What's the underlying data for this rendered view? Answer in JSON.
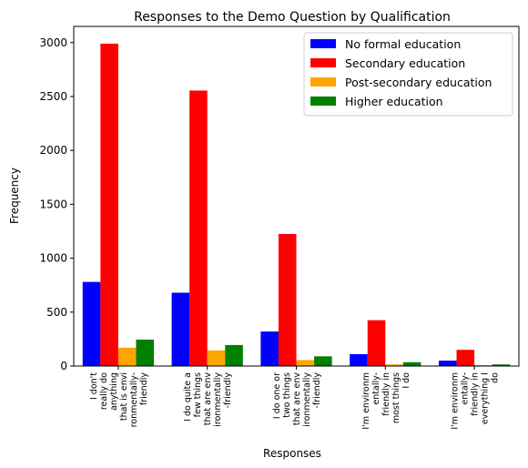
{
  "chart_data": {
    "type": "bar",
    "title": "Responses to the Demo Question by Qualification",
    "xlabel": "Responses",
    "ylabel": "Frequency",
    "ylim": [
      0,
      3150
    ],
    "yticks": [
      0,
      500,
      1000,
      1500,
      2000,
      2500,
      3000
    ],
    "grid": false,
    "legend_position": "top-right",
    "categories": [
      [
        "I don't",
        "really do",
        "anything",
        "that is envi",
        "ronmentally-",
        "friendly"
      ],
      [
        "I do quite a",
        "few things",
        "that are env",
        "ironmentally",
        "-friendly"
      ],
      [
        "I do one or",
        "two things",
        "that are env",
        "ironmentally",
        "-friendly"
      ],
      [
        "I'm environm",
        "entally-",
        "friendly in",
        "most things",
        "I do"
      ],
      [
        "I'm environm",
        "entally-",
        "friendly in",
        "everything I",
        "do"
      ]
    ],
    "series": [
      {
        "name": "No formal education",
        "color": "#0000ff",
        "values": [
          780,
          680,
          320,
          110,
          50
        ]
      },
      {
        "name": "Secondary education",
        "color": "#ff0000",
        "values": [
          2990,
          2555,
          1225,
          425,
          150
        ]
      },
      {
        "name": "Post-secondary education",
        "color": "#ffa500",
        "values": [
          170,
          145,
          55,
          15,
          8
        ]
      },
      {
        "name": "Higher education",
        "color": "#008000",
        "values": [
          245,
          195,
          90,
          35,
          15
        ]
      }
    ]
  }
}
